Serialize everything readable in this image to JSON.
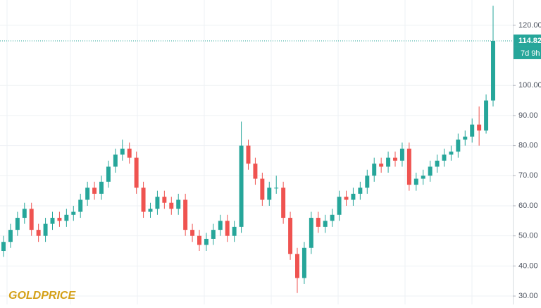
{
  "chart_data": {
    "type": "candlestick",
    "open": [
      45,
      48,
      52,
      56,
      59,
      52,
      50,
      54,
      56,
      55,
      57,
      58,
      62,
      66,
      64,
      68,
      73,
      77,
      79,
      76,
      66,
      58,
      59,
      63,
      61,
      59,
      62,
      52,
      50,
      47,
      49,
      52,
      55,
      50,
      53,
      80,
      74,
      69,
      62,
      66,
      66,
      56,
      44,
      36,
      46,
      56,
      53,
      55,
      57,
      63,
      62,
      64,
      66,
      70,
      74,
      73,
      76,
      75,
      79,
      67,
      69,
      70,
      73,
      75,
      77,
      78,
      82,
      83,
      87,
      85,
      95
    ],
    "high": [
      50,
      54,
      58,
      61,
      61,
      54,
      56,
      58,
      58,
      59,
      60,
      64,
      68,
      68,
      70,
      75,
      79,
      82,
      81,
      78,
      68,
      61,
      65,
      65,
      63,
      64,
      64,
      54,
      52,
      51,
      54,
      57,
      57,
      55,
      88,
      82,
      76,
      71,
      68,
      70,
      68,
      58,
      46,
      48,
      58,
      58,
      57,
      59,
      65,
      65,
      66,
      68,
      72,
      76,
      76,
      78,
      78,
      81,
      81,
      71,
      72,
      75,
      77,
      79,
      80,
      84,
      85,
      89,
      93,
      97,
      126.5
    ],
    "low": [
      43,
      46,
      50,
      54,
      50,
      48,
      48,
      52,
      53,
      53,
      55,
      56,
      60,
      62,
      62,
      66,
      71,
      75,
      74,
      64,
      56,
      56,
      57,
      59,
      57,
      57,
      50,
      48,
      45,
      45,
      47,
      50,
      48,
      48,
      51,
      72,
      67,
      60,
      60,
      64,
      54,
      42,
      31,
      34,
      44,
      51,
      51,
      53,
      55,
      60,
      60,
      62,
      64,
      68,
      71,
      71,
      73,
      73,
      65,
      65,
      67,
      68,
      71,
      73,
      75,
      76,
      80,
      81,
      80,
      84,
      93
    ],
    "close": [
      48,
      52,
      56,
      59,
      52,
      50,
      54,
      56,
      55,
      57,
      58,
      62,
      66,
      64,
      68,
      73,
      77,
      79,
      76,
      66,
      58,
      59,
      63,
      61,
      59,
      62,
      52,
      50,
      47,
      49,
      52,
      55,
      50,
      53,
      80,
      74,
      69,
      62,
      66,
      66,
      56,
      44,
      36,
      46,
      56,
      53,
      55,
      57,
      63,
      62,
      64,
      66,
      70,
      74,
      73,
      76,
      75,
      79,
      67,
      69,
      70,
      73,
      75,
      77,
      78,
      82,
      83,
      87,
      85,
      95,
      114.82
    ],
    "up_color": "#26a69a",
    "down_color": "#ef5350",
    "ylim": [
      27.2,
      128.4
    ],
    "yticks": [
      {
        "value": 30,
        "label": "30.00"
      },
      {
        "value": 40,
        "label": "40.00"
      },
      {
        "value": 50,
        "label": "50.00"
      },
      {
        "value": 60,
        "label": "60.00"
      },
      {
        "value": 70,
        "label": "70.00"
      },
      {
        "value": 80,
        "label": "80.00"
      },
      {
        "value": 90,
        "label": "90.00"
      },
      {
        "value": 100,
        "label": "100.00"
      },
      {
        "value": 120,
        "label": "120.00"
      }
    ],
    "grid": true,
    "price_line": {
      "value": 114.82,
      "label": "114.82"
    },
    "countdown": "7d 9h",
    "logo": "GOLDPRICE"
  }
}
